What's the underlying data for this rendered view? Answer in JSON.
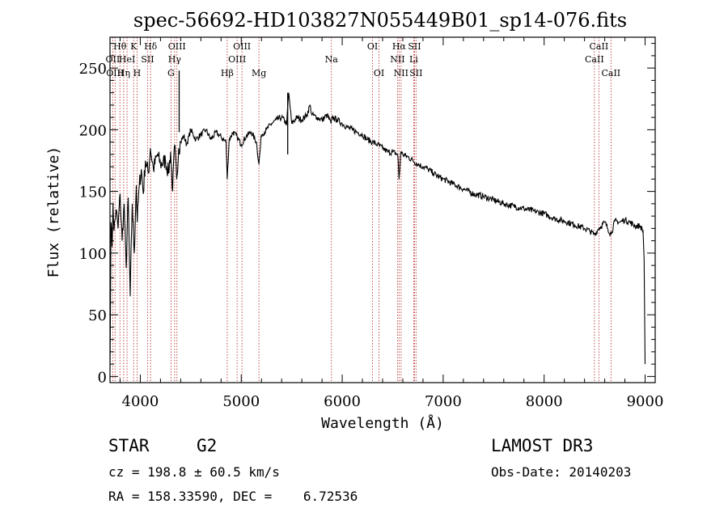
{
  "chart_data": {
    "type": "line",
    "title": "spec-56692-HD103827N055449B01_sp14-076.fits",
    "xlabel": "Wavelength (Å)",
    "ylabel": "Flux (relative)",
    "xlim": [
      3700,
      9100
    ],
    "ylim": [
      -5,
      275
    ],
    "x_ticks": [
      4000,
      5000,
      6000,
      7000,
      8000,
      9000
    ],
    "y_ticks": [
      0,
      50,
      100,
      150,
      200,
      250
    ],
    "series": [
      {
        "name": "spectrum",
        "x": [
          3700,
          3710,
          3720,
          3730,
          3740,
          3760,
          3780,
          3800,
          3820,
          3840,
          3860,
          3880,
          3900,
          3920,
          3940,
          3960,
          3970,
          3990,
          4010,
          4030,
          4050,
          4080,
          4100,
          4130,
          4170,
          4200,
          4250,
          4280,
          4300,
          4320,
          4340,
          4360,
          4380,
          4400,
          4430,
          4460,
          4500,
          4550,
          4600,
          4650,
          4700,
          4750,
          4800,
          4850,
          4861,
          4880,
          4920,
          4960,
          5000,
          5050,
          5100,
          5150,
          5175,
          5200,
          5250,
          5300,
          5350,
          5400,
          5450,
          5470,
          5500,
          5550,
          5600,
          5650,
          5680,
          5700,
          5750,
          5800,
          5850,
          5890,
          5900,
          5950,
          6000,
          6050,
          6100,
          6150,
          6200,
          6250,
          6300,
          6350,
          6400,
          6450,
          6500,
          6550,
          6563,
          6580,
          6600,
          6650,
          6700,
          6750,
          6800,
          6850,
          6900,
          6950,
          7000,
          7100,
          7200,
          7300,
          7400,
          7500,
          7600,
          7700,
          7800,
          7900,
          8000,
          8100,
          8200,
          8300,
          8400,
          8450,
          8498,
          8542,
          8600,
          8662,
          8700,
          8750,
          8800,
          8850,
          8900,
          8950,
          8980,
          8990,
          9000
        ],
        "values": [
          5,
          125,
          105,
          140,
          118,
          135,
          120,
          148,
          110,
          140,
          88,
          145,
          65,
          140,
          100,
          155,
          125,
          155,
          168,
          148,
          175,
          165,
          185,
          168,
          180,
          172,
          175,
          165,
          182,
          150,
          188,
          160,
          185,
          190,
          195,
          188,
          200,
          192,
          196,
          200,
          192,
          198,
          194,
          190,
          160,
          192,
          198,
          194,
          188,
          195,
          198,
          190,
          172,
          196,
          200,
          205,
          208,
          210,
          205,
          230,
          205,
          210,
          208,
          212,
          220,
          212,
          210,
          208,
          212,
          205,
          210,
          208,
          205,
          202,
          200,
          198,
          196,
          192,
          190,
          188,
          185,
          182,
          182,
          180,
          160,
          182,
          180,
          178,
          175,
          172,
          170,
          168,
          165,
          162,
          160,
          156,
          152,
          148,
          146,
          143,
          140,
          138,
          136,
          134,
          132,
          128,
          126,
          123,
          120,
          118,
          115,
          120,
          125,
          115,
          126,
          125,
          127,
          125,
          122,
          122,
          118,
          95,
          10
        ],
        "spikes": [
          {
            "x": 4385,
            "value": 248
          },
          {
            "x": 5460,
            "value": 230
          }
        ]
      }
    ],
    "lines": [
      {
        "x": 3727,
        "label": "OII",
        "row": 2
      },
      {
        "x": 3750,
        "label": "OIII",
        "row": 3
      },
      {
        "x": 3798,
        "label": "Hθ",
        "row": 1
      },
      {
        "x": 3835,
        "label": "Hη",
        "row": 3
      },
      {
        "x": 3869,
        "label": "HeI",
        "row": 2
      },
      {
        "x": 3934,
        "label": "K",
        "row": 1
      },
      {
        "x": 3968,
        "label": "H",
        "row": 3
      },
      {
        "x": 4072,
        "label": "SII",
        "row": 2
      },
      {
        "x": 4102,
        "label": "Hδ",
        "row": 1
      },
      {
        "x": 4304,
        "label": "G",
        "row": 3
      },
      {
        "x": 4340,
        "label": "Hγ",
        "row": 2
      },
      {
        "x": 4363,
        "label": "OIII",
        "row": 1
      },
      {
        "x": 4861,
        "label": "Hβ",
        "row": 3
      },
      {
        "x": 4959,
        "label": "OIII",
        "row": 2
      },
      {
        "x": 5007,
        "label": "OIII",
        "row": 1
      },
      {
        "x": 5175,
        "label": "Mg",
        "row": 3
      },
      {
        "x": 5893,
        "label": "Na",
        "row": 2
      },
      {
        "x": 6300,
        "label": "OI",
        "row": 1
      },
      {
        "x": 6364,
        "label": "OI",
        "row": 3
      },
      {
        "x": 6548,
        "label": "NII",
        "row": 2
      },
      {
        "x": 6563,
        "label": "Hα",
        "row": 1
      },
      {
        "x": 6583,
        "label": "NII",
        "row": 3
      },
      {
        "x": 6708,
        "label": "Li",
        "row": 2
      },
      {
        "x": 6716,
        "label": "SII",
        "row": 1
      },
      {
        "x": 6731,
        "label": "SII",
        "row": 3
      },
      {
        "x": 8498,
        "label": "CaII",
        "row": 2
      },
      {
        "x": 8542,
        "label": "CaII",
        "row": 1
      },
      {
        "x": 8662,
        "label": "CaII",
        "row": 3
      }
    ],
    "line_color": "#b22222"
  },
  "info": {
    "class": "STAR",
    "subclass": "G2",
    "survey": "LAMOST DR3",
    "cz": "cz = 198.8 ± 60.5 km/s",
    "obs_date": "Obs-Date: 20140203",
    "coords": "RA = 158.33590, DEC =    6.72536"
  }
}
